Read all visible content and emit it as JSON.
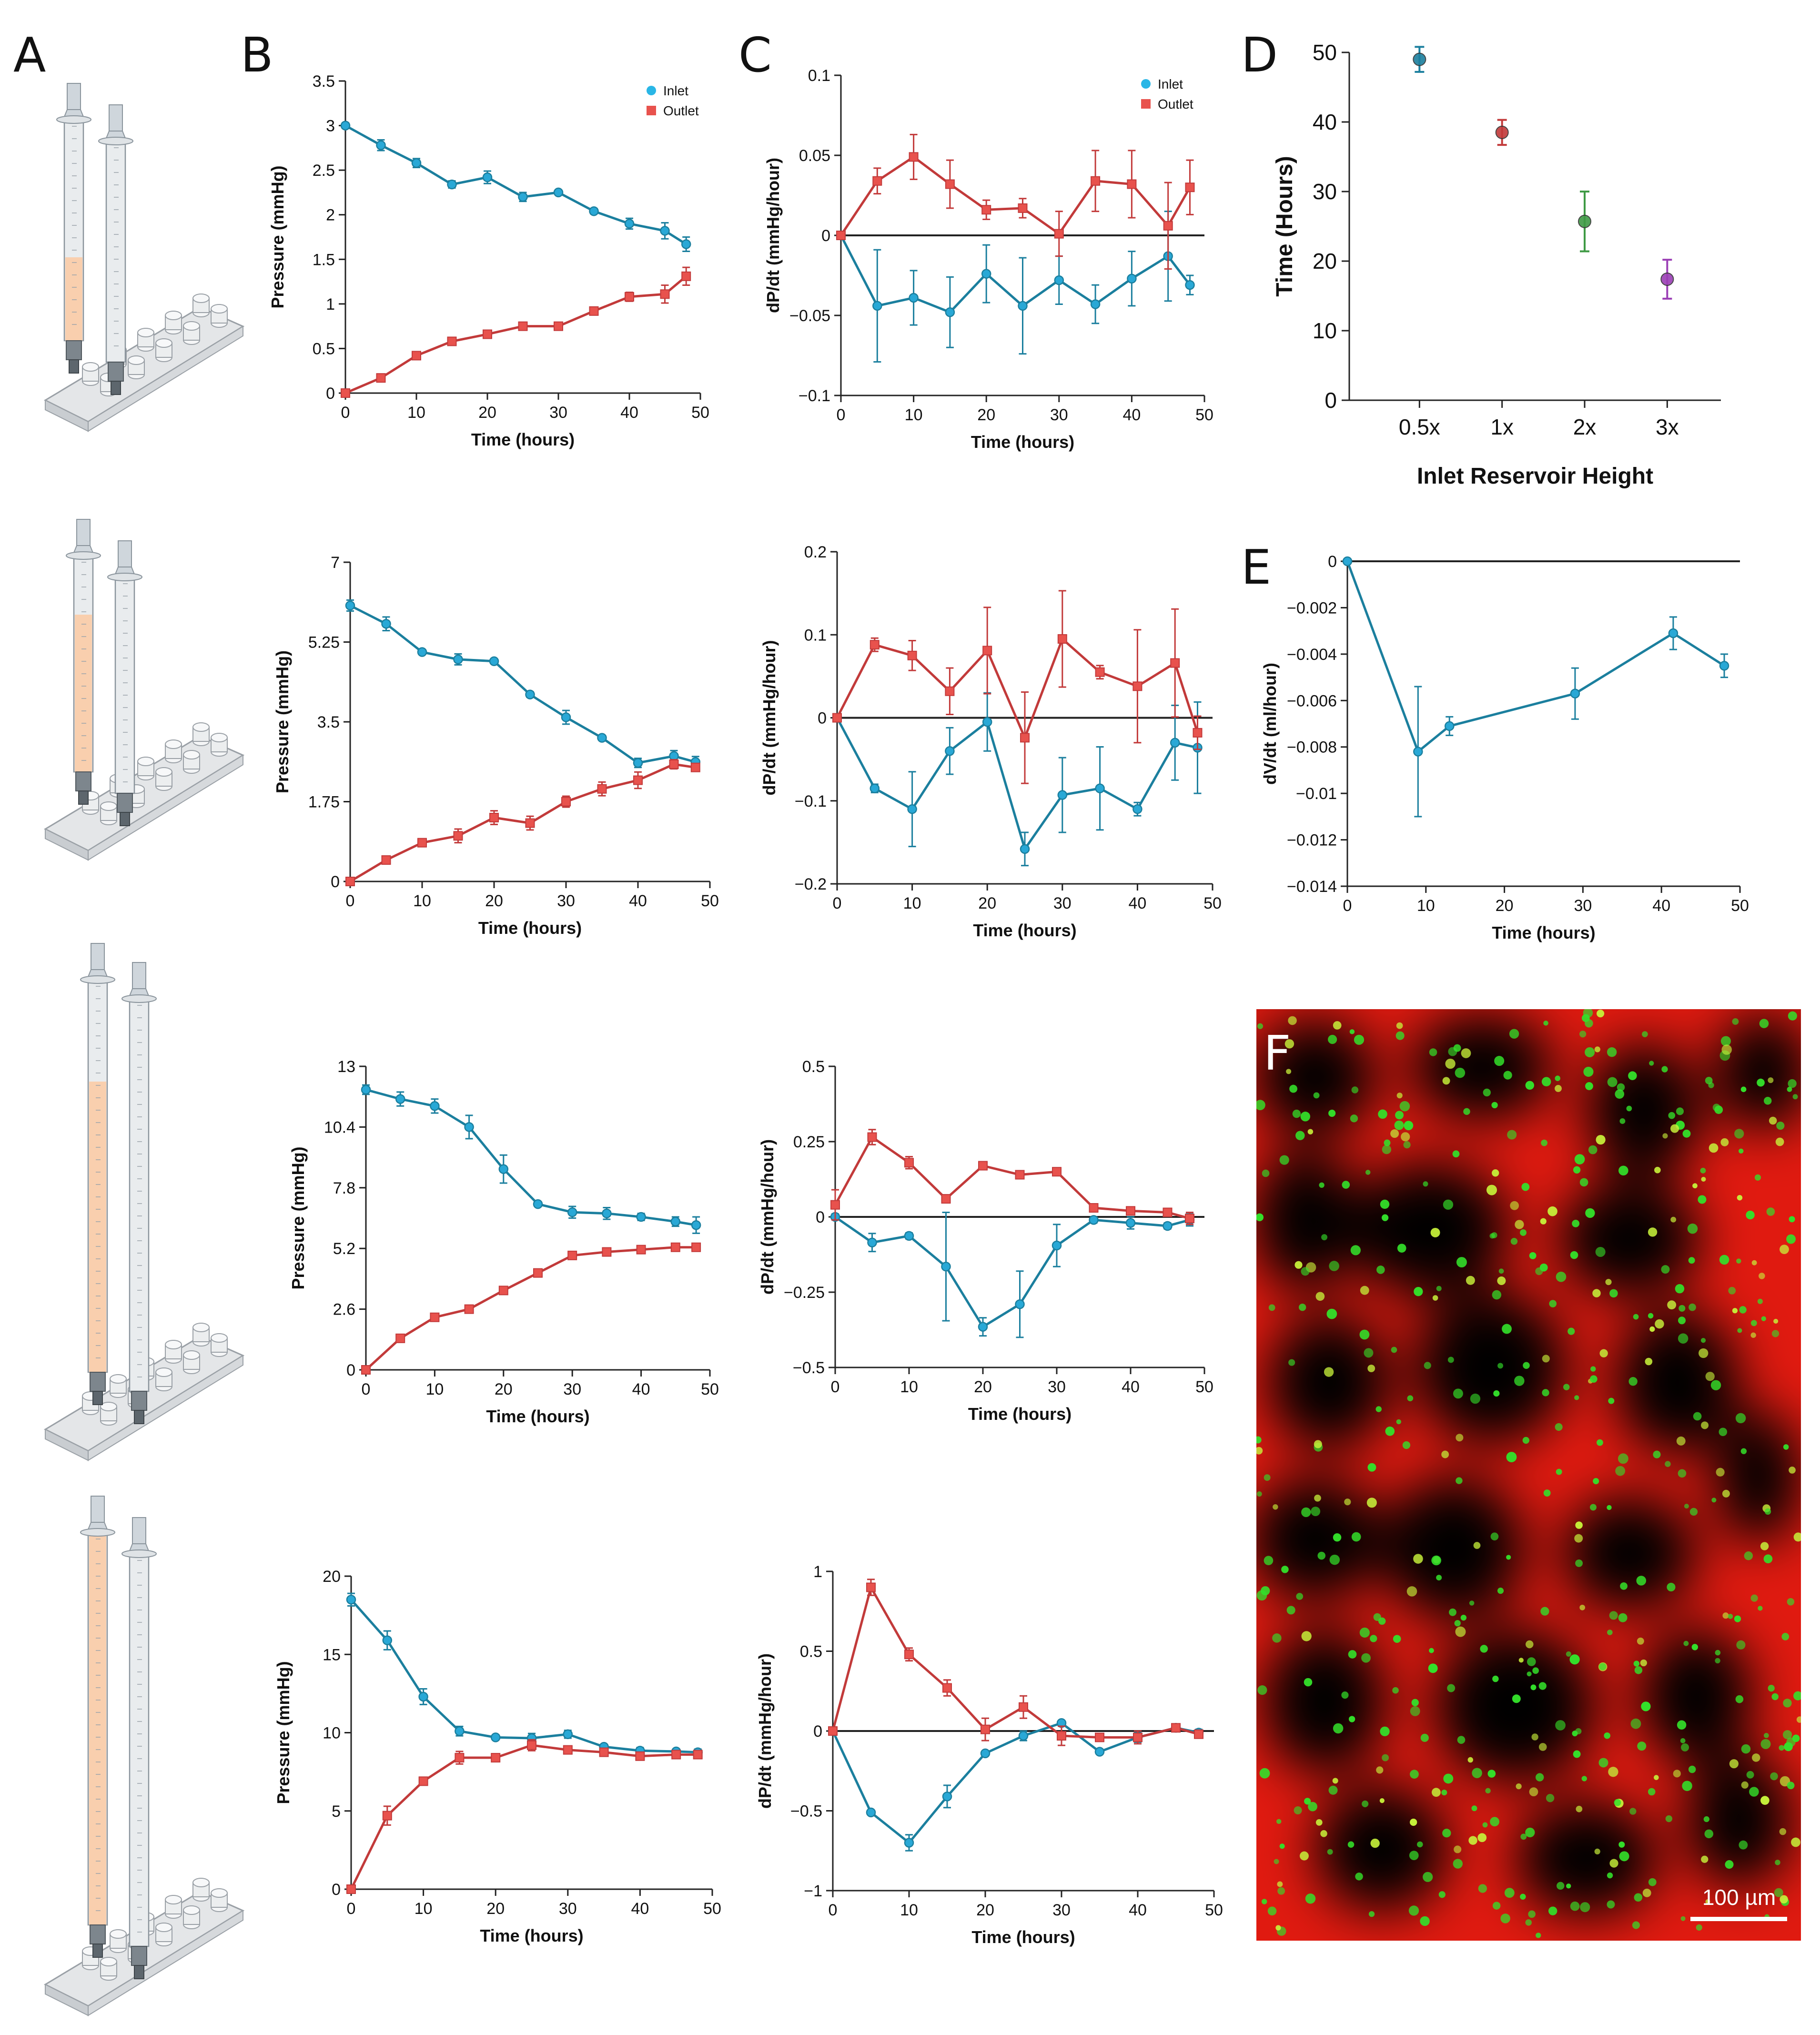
{
  "panel_letters": [
    "A",
    "B",
    "C",
    "D",
    "E",
    "F"
  ],
  "colors": {
    "inlet": "#1b7f9e",
    "outlet": "#c23a3a",
    "inlet_legend": "#29b6e6",
    "outlet_legend": "#e8524d",
    "d_colors": [
      "#1b7f9e",
      "#c23a3a",
      "#3f9a45",
      "#9b3fb5"
    ],
    "tube_fill": "#f9cfae"
  },
  "scale_bar_label": "100 µm",
  "chart_data": [
    {
      "id": "B1",
      "type": "line",
      "xlabel": "Time (hours)",
      "ylabel": "Pressure (mmHg)",
      "xlim": [
        0,
        50
      ],
      "ylim": [
        0,
        3.5
      ],
      "xticks": [
        0,
        10,
        20,
        30,
        40,
        50
      ],
      "yticks": [
        0,
        0.5,
        1,
        1.5,
        2,
        2.5,
        3,
        3.5
      ],
      "ytick_labels": [
        "0",
        "0.5",
        "1",
        "1.5",
        "2",
        "2.5",
        "3",
        "3.5"
      ],
      "legend": [
        "Inlet",
        "Outlet"
      ],
      "series": [
        {
          "name": "Inlet",
          "marker": "circle",
          "x": [
            0,
            5,
            10,
            15,
            20,
            25,
            30,
            35,
            40,
            45,
            48
          ],
          "y": [
            3.0,
            2.78,
            2.58,
            2.34,
            2.42,
            2.2,
            2.25,
            2.04,
            1.9,
            1.82,
            1.67
          ],
          "err": [
            0.03,
            0.06,
            0.05,
            0.04,
            0.07,
            0.05,
            0.02,
            0.03,
            0.06,
            0.09,
            0.08
          ]
        },
        {
          "name": "Outlet",
          "marker": "square",
          "x": [
            0,
            5,
            10,
            15,
            20,
            25,
            30,
            35,
            40,
            45,
            48
          ],
          "y": [
            0.0,
            0.17,
            0.42,
            0.58,
            0.66,
            0.75,
            0.75,
            0.92,
            1.08,
            1.11,
            1.31
          ],
          "err": [
            0.01,
            0.02,
            0.02,
            0.02,
            0.02,
            0.03,
            0.03,
            0.04,
            0.05,
            0.1,
            0.1
          ]
        }
      ]
    },
    {
      "id": "C1",
      "type": "line",
      "xlabel": "Time (hours)",
      "ylabel": "dP/dt (mmHg/hour)",
      "xlim": [
        0,
        50
      ],
      "ylim": [
        -0.1,
        0.1
      ],
      "xticks": [
        0,
        10,
        20,
        30,
        40,
        50
      ],
      "yticks": [
        -0.1,
        -0.05,
        0,
        0.05,
        0.1
      ],
      "ytick_labels": [
        "−0.1",
        "−0.05",
        "0",
        "0.05",
        "0.1"
      ],
      "zero_line": true,
      "legend": [
        "Inlet",
        "Outlet"
      ],
      "series": [
        {
          "name": "Inlet",
          "marker": "circle",
          "x": [
            0,
            5,
            10,
            15,
            20,
            25,
            30,
            35,
            40,
            45,
            48
          ],
          "y": [
            0.0,
            -0.044,
            -0.039,
            -0.048,
            -0.024,
            -0.044,
            -0.028,
            -0.043,
            -0.027,
            -0.013,
            -0.031
          ],
          "err": [
            0,
            0.035,
            0.017,
            0.022,
            0.018,
            0.03,
            0.015,
            0.012,
            0.017,
            0.028,
            0.006
          ]
        },
        {
          "name": "Outlet",
          "marker": "square",
          "x": [
            0,
            5,
            10,
            15,
            20,
            25,
            30,
            35,
            40,
            45,
            48
          ],
          "y": [
            0.0,
            0.034,
            0.049,
            0.032,
            0.016,
            0.017,
            0.001,
            0.034,
            0.032,
            0.006,
            0.03
          ],
          "err": [
            0,
            0.008,
            0.014,
            0.015,
            0.006,
            0.006,
            0.014,
            0.019,
            0.021,
            0.027,
            0.017
          ]
        }
      ]
    },
    {
      "id": "D",
      "type": "scatter",
      "xlabel": "Inlet Reservoir Height",
      "ylabel": "Time (Hours)",
      "categories": [
        "0.5x",
        "1x",
        "2x",
        "3x"
      ],
      "ylim": [
        0,
        50
      ],
      "yticks": [
        0,
        10,
        20,
        30,
        40,
        50
      ],
      "ytick_labels": [
        "0",
        "10",
        "20",
        "30",
        "40",
        "50"
      ],
      "values": [
        49,
        38.5,
        25.7,
        17.4
      ],
      "err": [
        1.8,
        1.8,
        4.3,
        2.8
      ]
    },
    {
      "id": "B2",
      "type": "line",
      "xlabel": "Time (hours)",
      "ylabel": "Pressure (mmHg)",
      "xlim": [
        0,
        50
      ],
      "ylim": [
        0,
        7
      ],
      "xticks": [
        0,
        10,
        20,
        30,
        40,
        50
      ],
      "yticks": [
        0,
        1.75,
        3.5,
        5.25,
        7
      ],
      "ytick_labels": [
        "0",
        "1.75",
        "3.5",
        "5.25",
        "7"
      ],
      "series": [
        {
          "name": "Inlet",
          "marker": "circle",
          "x": [
            0,
            5,
            10,
            15,
            20,
            25,
            30,
            35,
            40,
            45,
            48
          ],
          "y": [
            6.05,
            5.65,
            5.03,
            4.87,
            4.83,
            4.1,
            3.6,
            3.15,
            2.6,
            2.75,
            2.62
          ],
          "err": [
            0.12,
            0.15,
            0.05,
            0.12,
            0.04,
            0.06,
            0.15,
            0.05,
            0.1,
            0.12,
            0.12
          ]
        },
        {
          "name": "Outlet",
          "marker": "square",
          "x": [
            0,
            5,
            10,
            15,
            20,
            25,
            30,
            35,
            40,
            45,
            48
          ],
          "y": [
            0.0,
            0.47,
            0.85,
            1.0,
            1.4,
            1.28,
            1.75,
            2.03,
            2.22,
            2.57,
            2.5
          ],
          "err": [
            0.02,
            0.08,
            0.08,
            0.15,
            0.15,
            0.15,
            0.12,
            0.15,
            0.18,
            0.1,
            0.08
          ]
        }
      ]
    },
    {
      "id": "C2",
      "type": "line",
      "xlabel": "Time (hours)",
      "ylabel": "dP/dt (mmHg/hour)",
      "xlim": [
        0,
        50
      ],
      "ylim": [
        -0.2,
        0.2
      ],
      "xticks": [
        0,
        10,
        20,
        30,
        40,
        50
      ],
      "yticks": [
        -0.2,
        -0.1,
        0,
        0.1,
        0.2
      ],
      "ytick_labels": [
        "−0.2",
        "−0.1",
        "0",
        "0.1",
        "0.2"
      ],
      "zero_line": true,
      "series": [
        {
          "name": "Inlet",
          "marker": "circle",
          "x": [
            0,
            5,
            10,
            15,
            20,
            25,
            30,
            35,
            40,
            45,
            48
          ],
          "y": [
            0.0,
            -0.085,
            -0.11,
            -0.04,
            -0.005,
            -0.158,
            -0.093,
            -0.085,
            -0.11,
            -0.03,
            -0.036
          ],
          "err": [
            0,
            0.005,
            0.045,
            0.028,
            0.035,
            0.02,
            0.045,
            0.05,
            0.008,
            0.045,
            0.055
          ]
        },
        {
          "name": "Outlet",
          "marker": "square",
          "x": [
            0,
            5,
            10,
            15,
            20,
            25,
            30,
            35,
            40,
            45,
            48
          ],
          "y": [
            0.0,
            0.088,
            0.075,
            0.032,
            0.081,
            -0.024,
            0.095,
            0.055,
            0.038,
            0.066,
            -0.018
          ],
          "err": [
            0,
            0.008,
            0.018,
            0.028,
            0.052,
            0.055,
            0.058,
            0.008,
            0.068,
            0.065,
            0.02
          ]
        }
      ]
    },
    {
      "id": "E",
      "type": "line",
      "xlabel": "Time (hours)",
      "ylabel": "dV/dt (ml/hour)",
      "xlim": [
        0,
        50
      ],
      "ylim": [
        -0.014,
        0
      ],
      "xticks": [
        0,
        10,
        20,
        30,
        40,
        50
      ],
      "yticks": [
        -0.014,
        -0.012,
        -0.01,
        -0.008,
        -0.006,
        -0.004,
        -0.002,
        0
      ],
      "ytick_labels": [
        "−0.014",
        "−0.012",
        "−0.01",
        "−0.008",
        "−0.006",
        "−0.004",
        "−0.002",
        "0"
      ],
      "zero_line": true,
      "series": [
        {
          "name": "",
          "marker": "circle",
          "x": [
            0,
            9,
            13,
            29,
            41.5,
            48
          ],
          "y": [
            0.0,
            -0.0082,
            -0.0071,
            -0.0057,
            -0.0031,
            -0.0045
          ],
          "err": [
            0,
            0.0028,
            0.0004,
            0.0011,
            0.0007,
            0.0005
          ]
        }
      ]
    },
    {
      "id": "B3",
      "type": "line",
      "xlabel": "Time (hours)",
      "ylabel": "Pressure (mmHg)",
      "xlim": [
        0,
        50
      ],
      "ylim": [
        0,
        13
      ],
      "xticks": [
        0,
        10,
        20,
        30,
        40,
        50
      ],
      "yticks": [
        0,
        2.6,
        5.2,
        7.8,
        10.4,
        13
      ],
      "ytick_labels": [
        "0",
        "2.6",
        "5.2",
        "7.8",
        "10.4",
        "13"
      ],
      "series": [
        {
          "name": "Inlet",
          "marker": "circle",
          "x": [
            0,
            5,
            10,
            15,
            20,
            25,
            30,
            35,
            40,
            45,
            48
          ],
          "y": [
            12.0,
            11.6,
            11.3,
            10.4,
            8.6,
            7.1,
            6.75,
            6.7,
            6.55,
            6.35,
            6.2
          ],
          "err": [
            0.2,
            0.3,
            0.3,
            0.5,
            0.6,
            0.1,
            0.25,
            0.25,
            0.15,
            0.2,
            0.35
          ]
        },
        {
          "name": "Outlet",
          "marker": "square",
          "x": [
            0,
            5,
            10,
            15,
            20,
            25,
            30,
            35,
            40,
            45,
            48
          ],
          "y": [
            0.0,
            1.35,
            2.25,
            2.6,
            3.4,
            4.15,
            4.9,
            5.05,
            5.15,
            5.25,
            5.25
          ],
          "err": [
            0.05,
            0.08,
            0.1,
            0.1,
            0.1,
            0.1,
            0.12,
            0.1,
            0.1,
            0.1,
            0.1
          ]
        }
      ]
    },
    {
      "id": "C3",
      "type": "line",
      "xlabel": "Time (hours)",
      "ylabel": "dP/dt (mmHg/hour)",
      "xlim": [
        0,
        50
      ],
      "ylim": [
        -0.5,
        0.5
      ],
      "xticks": [
        0,
        10,
        20,
        30,
        40,
        50
      ],
      "yticks": [
        -0.5,
        -0.25,
        0,
        0.25,
        0.5
      ],
      "ytick_labels": [
        "−0.5",
        "−0.25",
        "0",
        "0.25",
        "0.5"
      ],
      "zero_line": true,
      "series": [
        {
          "name": "Inlet",
          "marker": "circle",
          "x": [
            0,
            5,
            10,
            15,
            20,
            25,
            30,
            35,
            40,
            45,
            48
          ],
          "y": [
            0.0,
            -0.085,
            -0.063,
            -0.165,
            -0.365,
            -0.29,
            -0.095,
            -0.01,
            -0.02,
            -0.03,
            -0.01
          ],
          "err": [
            0.01,
            0.03,
            0.01,
            0.18,
            0.03,
            0.11,
            0.07,
            0.01,
            0.02,
            0.01,
            0.02
          ]
        },
        {
          "name": "Outlet",
          "marker": "square",
          "x": [
            0,
            5,
            10,
            15,
            20,
            25,
            30,
            35,
            40,
            45,
            48
          ],
          "y": [
            0.04,
            0.265,
            0.18,
            0.06,
            0.17,
            0.14,
            0.15,
            0.03,
            0.02,
            0.015,
            -0.005
          ],
          "err": [
            0.05,
            0.025,
            0.02,
            0.01,
            0.01,
            0.01,
            0.01,
            0.01,
            0.01,
            0.01,
            0.02
          ]
        }
      ]
    },
    {
      "id": "B4",
      "type": "line",
      "xlabel": "Time (hours)",
      "ylabel": "Pressure (mmHg)",
      "xlim": [
        0,
        50
      ],
      "ylim": [
        0,
        20
      ],
      "xticks": [
        0,
        10,
        20,
        30,
        40,
        50
      ],
      "yticks": [
        0,
        5,
        10,
        15,
        20
      ],
      "ytick_labels": [
        "0",
        "5",
        "10",
        "15",
        "20"
      ],
      "series": [
        {
          "name": "Inlet",
          "marker": "circle",
          "x": [
            0,
            5,
            10,
            15,
            20,
            25,
            30,
            35,
            40,
            45,
            48
          ],
          "y": [
            18.5,
            15.9,
            12.3,
            10.1,
            9.7,
            9.65,
            9.9,
            9.1,
            8.85,
            8.8,
            8.75
          ],
          "err": [
            0.4,
            0.6,
            0.5,
            0.3,
            0.15,
            0.3,
            0.25,
            0.15,
            0.2,
            0.15,
            0.2
          ]
        },
        {
          "name": "Outlet",
          "marker": "square",
          "x": [
            0,
            5,
            10,
            15,
            20,
            25,
            30,
            35,
            40,
            45,
            48
          ],
          "y": [
            0.0,
            4.7,
            6.9,
            8.4,
            8.4,
            9.2,
            8.9,
            8.75,
            8.5,
            8.6,
            8.6
          ],
          "err": [
            0.2,
            0.6,
            0.2,
            0.4,
            0.2,
            0.35,
            0.2,
            0.2,
            0.2,
            0.2,
            0.2
          ]
        }
      ]
    },
    {
      "id": "C4",
      "type": "line",
      "xlabel": "Time (hours)",
      "ylabel": "dP/dt (mmHg/hour)",
      "xlim": [
        0,
        50
      ],
      "ylim": [
        -1,
        1
      ],
      "xticks": [
        0,
        10,
        20,
        30,
        40,
        50
      ],
      "yticks": [
        -1,
        -0.5,
        0,
        0.5,
        1
      ],
      "ytick_labels": [
        "−1",
        "−0.5",
        "0",
        "0.5",
        "1"
      ],
      "zero_line": true,
      "series": [
        {
          "name": "Inlet",
          "marker": "circle",
          "x": [
            0,
            5,
            10,
            15,
            20,
            25,
            30,
            35,
            40,
            45,
            48
          ],
          "y": [
            0.0,
            -0.51,
            -0.7,
            -0.41,
            -0.14,
            -0.03,
            0.05,
            -0.13,
            -0.04,
            0.02,
            -0.01
          ],
          "err": [
            0,
            0.01,
            0.05,
            0.07,
            0.01,
            0.03,
            0.01,
            0.01,
            0.03,
            0.02,
            0.02
          ]
        },
        {
          "name": "Outlet",
          "marker": "square",
          "x": [
            0,
            5,
            10,
            15,
            20,
            25,
            30,
            35,
            40,
            45,
            48
          ],
          "y": [
            0.0,
            0.9,
            0.48,
            0.27,
            0.01,
            0.15,
            -0.03,
            -0.04,
            -0.04,
            0.02,
            -0.02
          ],
          "err": [
            0,
            0.05,
            0.04,
            0.05,
            0.07,
            0.07,
            0.06,
            0.01,
            0.04,
            0.02,
            0.02
          ]
        }
      ]
    }
  ]
}
